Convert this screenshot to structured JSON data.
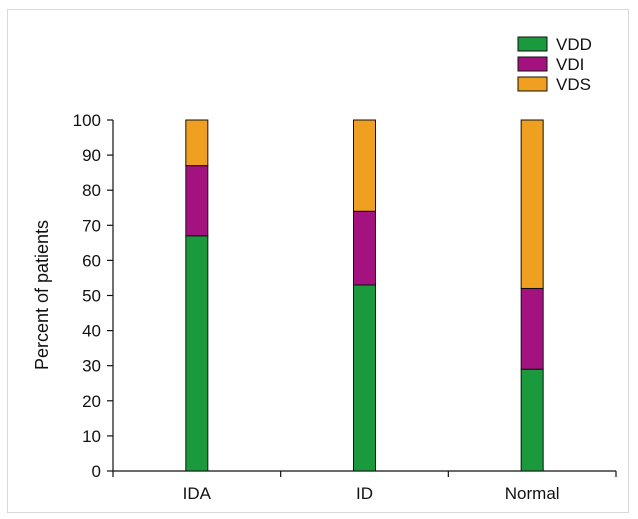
{
  "chart_data": {
    "type": "bar",
    "stacked": true,
    "categories": [
      "IDA",
      "ID",
      "Normal"
    ],
    "series": [
      {
        "name": "VDD",
        "values": [
          67,
          53,
          29
        ],
        "color": "#1a9a3c"
      },
      {
        "name": "VDI",
        "values": [
          20,
          21,
          23
        ],
        "color": "#a3127e"
      },
      {
        "name": "VDS",
        "values": [
          13,
          26,
          48
        ],
        "color": "#f0a020"
      }
    ],
    "ylabel": "Percent of patients",
    "xlabel": "",
    "ylim": [
      0,
      100
    ],
    "yticks": [
      0,
      10,
      20,
      30,
      40,
      50,
      60,
      70,
      80,
      90,
      100
    ],
    "grid": false,
    "legend_position": "top-right"
  }
}
